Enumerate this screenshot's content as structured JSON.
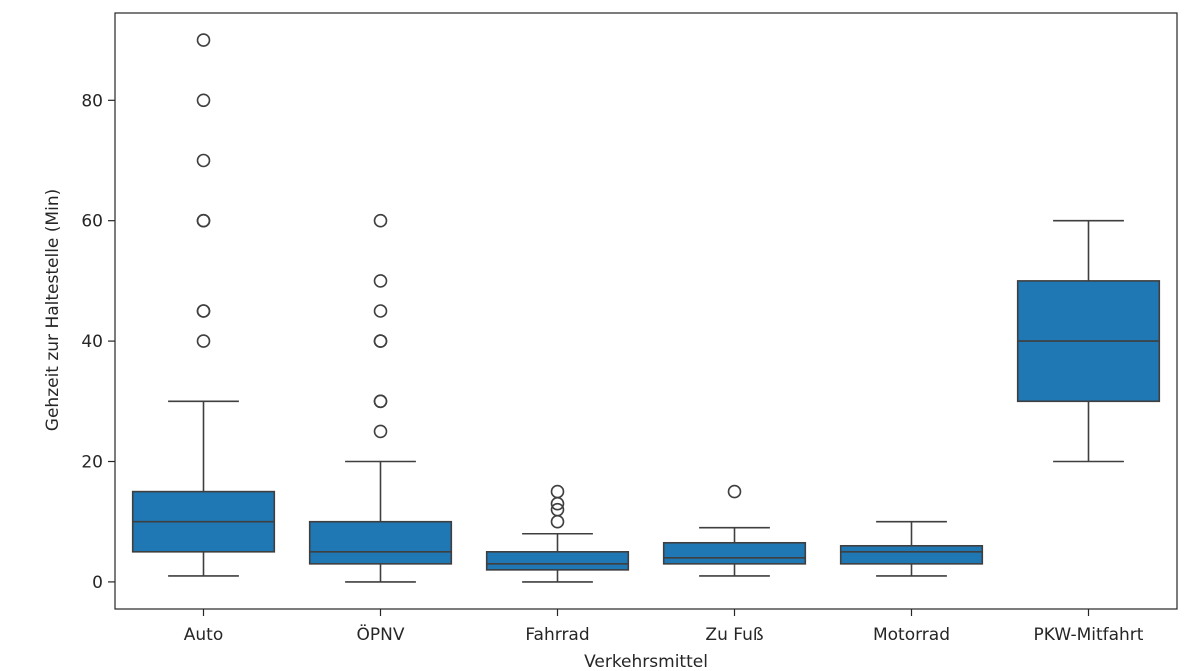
{
  "chart_data": {
    "type": "box",
    "xlabel": "Verkehrsmittel",
    "ylabel": "Gehzeit zur Haltestelle (Min)",
    "ylim": [
      -4.5,
      94.5
    ],
    "yticks": [
      0,
      20,
      40,
      60,
      80
    ],
    "grid": false,
    "box_color": "#1f77b4",
    "categories": [
      "Auto",
      "ÖPNV",
      "Fahrrad",
      "Zu Fuß",
      "Motorrad",
      "PKW-Mitfahrt"
    ],
    "boxes": [
      {
        "category": "Auto",
        "whisker_low": 1,
        "q1": 5,
        "median": 10,
        "q3": 15,
        "whisker_high": 30,
        "outliers": [
          40,
          45,
          45,
          60,
          60,
          70,
          80,
          90
        ]
      },
      {
        "category": "ÖPNV",
        "whisker_low": 0,
        "q1": 3,
        "median": 5,
        "q3": 10,
        "whisker_high": 20,
        "outliers": [
          25,
          30,
          30,
          40,
          40,
          45,
          50,
          60
        ]
      },
      {
        "category": "Fahrrad",
        "whisker_low": 0,
        "q1": 2,
        "median": 3,
        "q3": 5,
        "whisker_high": 8,
        "outliers": [
          10,
          12,
          13,
          15
        ]
      },
      {
        "category": "Zu Fuß",
        "whisker_low": 1,
        "q1": 3,
        "median": 4,
        "q3": 6.5,
        "whisker_high": 9,
        "outliers": [
          15
        ]
      },
      {
        "category": "Motorrad",
        "whisker_low": 1,
        "q1": 3,
        "median": 5,
        "q3": 6,
        "whisker_high": 10,
        "outliers": []
      },
      {
        "category": "PKW-Mitfahrt",
        "whisker_low": 20,
        "q1": 30,
        "median": 40,
        "q3": 50,
        "whisker_high": 60,
        "outliers": []
      }
    ]
  }
}
